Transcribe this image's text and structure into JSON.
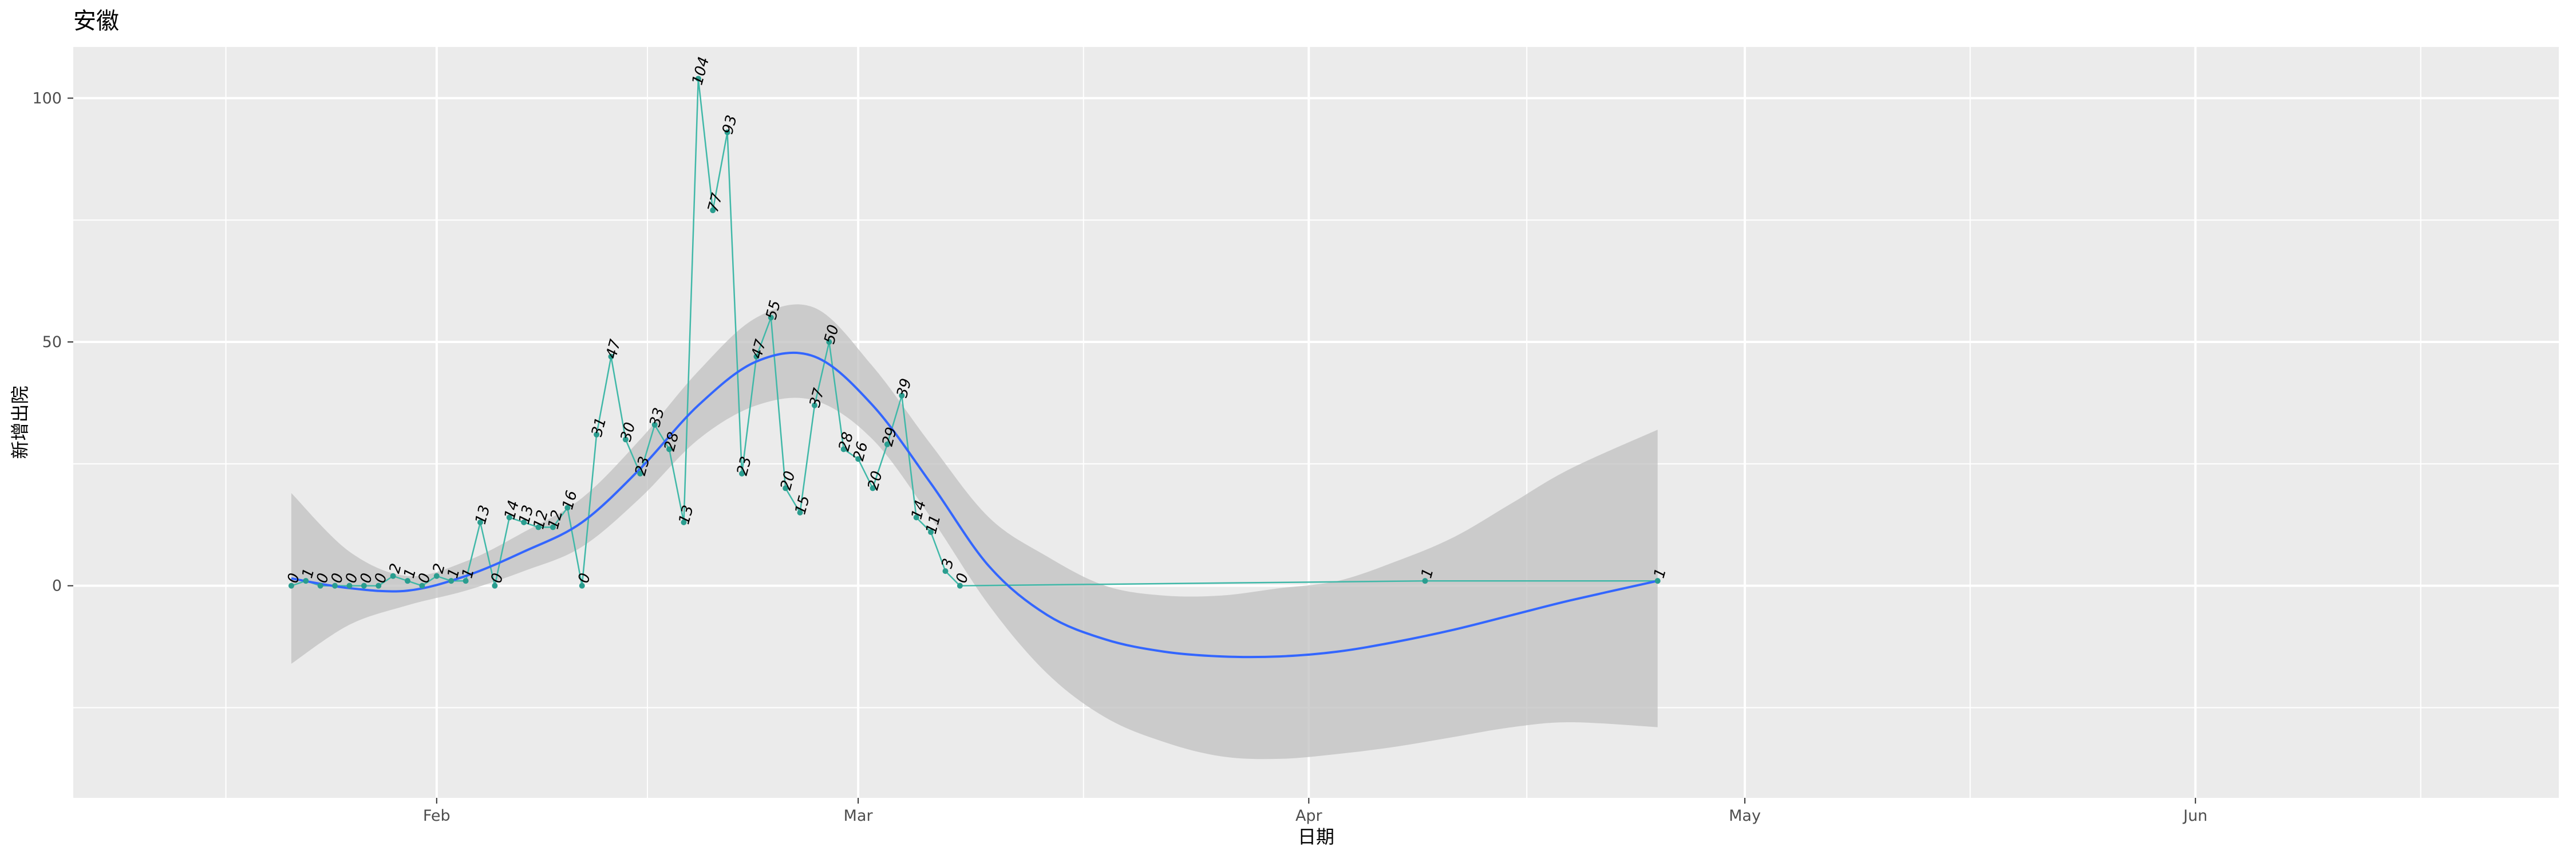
{
  "chart_data": {
    "type": "line",
    "title": "安徽",
    "xlabel": "日期",
    "ylabel": "新增出院",
    "x_range": [
      "2020-01-07",
      "2020-06-26"
    ],
    "ylim": [
      -43.5,
      110.5
    ],
    "grid": true,
    "legend": "none",
    "x_ticks": [
      {
        "date": "2020-02-01",
        "label": "Feb"
      },
      {
        "date": "2020-03-01",
        "label": "Mar"
      },
      {
        "date": "2020-04-01",
        "label": "Apr"
      },
      {
        "date": "2020-05-01",
        "label": "May"
      },
      {
        "date": "2020-06-01",
        "label": "Jun"
      }
    ],
    "y_ticks": [
      {
        "value": 0,
        "label": "0"
      },
      {
        "value": 50,
        "label": "50"
      },
      {
        "value": 100,
        "label": "100"
      }
    ],
    "colors": {
      "series_line": "#40b8a8",
      "series_point": "#2a9d8f",
      "smooth_line": "#3366ff",
      "ribbon": "#c0c0c0",
      "panel": "#ebebeb",
      "grid": "#ffffff"
    },
    "series": [
      {
        "x": [
          "2020-01-22",
          "2020-01-23",
          "2020-01-24",
          "2020-01-25",
          "2020-01-26",
          "2020-01-27",
          "2020-01-28",
          "2020-01-29",
          "2020-01-30",
          "2020-01-31",
          "2020-02-01",
          "2020-02-02",
          "2020-02-03",
          "2020-02-04",
          "2020-02-05",
          "2020-02-06",
          "2020-02-07",
          "2020-02-08",
          "2020-02-09",
          "2020-02-10",
          "2020-02-11",
          "2020-02-12",
          "2020-02-13",
          "2020-02-14",
          "2020-02-15",
          "2020-02-16",
          "2020-02-17",
          "2020-02-18",
          "2020-02-19",
          "2020-02-20",
          "2020-02-21",
          "2020-02-22",
          "2020-02-23",
          "2020-02-24",
          "2020-02-25",
          "2020-02-26",
          "2020-02-27",
          "2020-02-28",
          "2020-02-29",
          "2020-03-01",
          "2020-03-02",
          "2020-03-03",
          "2020-03-04",
          "2020-03-05",
          "2020-03-06",
          "2020-03-07",
          "2020-03-08",
          "2020-04-09",
          "2020-04-25"
        ],
        "values": [
          0,
          1,
          0,
          0,
          0,
          0,
          0,
          2,
          1,
          0,
          2,
          1,
          1,
          13,
          0,
          14,
          13,
          12,
          12,
          16,
          0,
          31,
          47,
          30,
          23,
          33,
          28,
          13,
          104,
          77,
          93,
          23,
          47,
          55,
          20,
          15,
          37,
          50,
          28,
          26,
          20,
          29,
          39,
          14,
          11,
          3,
          0,
          1,
          1
        ]
      }
    ],
    "smooth": {
      "x": [
        "2020-01-22",
        "2020-01-26",
        "2020-01-30",
        "2020-02-03",
        "2020-02-07",
        "2020-02-11",
        "2020-02-15",
        "2020-02-19",
        "2020-02-23",
        "2020-02-27",
        "2020-03-02",
        "2020-03-06",
        "2020-03-10",
        "2020-03-14",
        "2020-03-18",
        "2020-03-22",
        "2020-03-26",
        "2020-03-30",
        "2020-04-03",
        "2020-04-07",
        "2020-04-11",
        "2020-04-15",
        "2020-04-19",
        "2020-04-25"
      ],
      "y": [
        1.5,
        -0.5,
        -1,
        2,
        7,
        13,
        24,
        37,
        46,
        47,
        37,
        21,
        4,
        -6,
        -11,
        -13.5,
        -14.5,
        -14.5,
        -13.5,
        -11.5,
        -9,
        -6,
        -3,
        1
      ],
      "lower": [
        -16,
        -8,
        -4,
        -1,
        3,
        8,
        18,
        30,
        37,
        38,
        30,
        14,
        -4,
        -18,
        -27,
        -32,
        -35,
        -35.5,
        -34.5,
        -33,
        -31,
        -29,
        -28,
        -29
      ],
      "upper": [
        19,
        7,
        2,
        5,
        11,
        18,
        30,
        44,
        55,
        57,
        45,
        29,
        14,
        6,
        0,
        -2,
        -2,
        -0.5,
        1,
        5,
        10,
        17,
        24,
        32
      ]
    }
  }
}
